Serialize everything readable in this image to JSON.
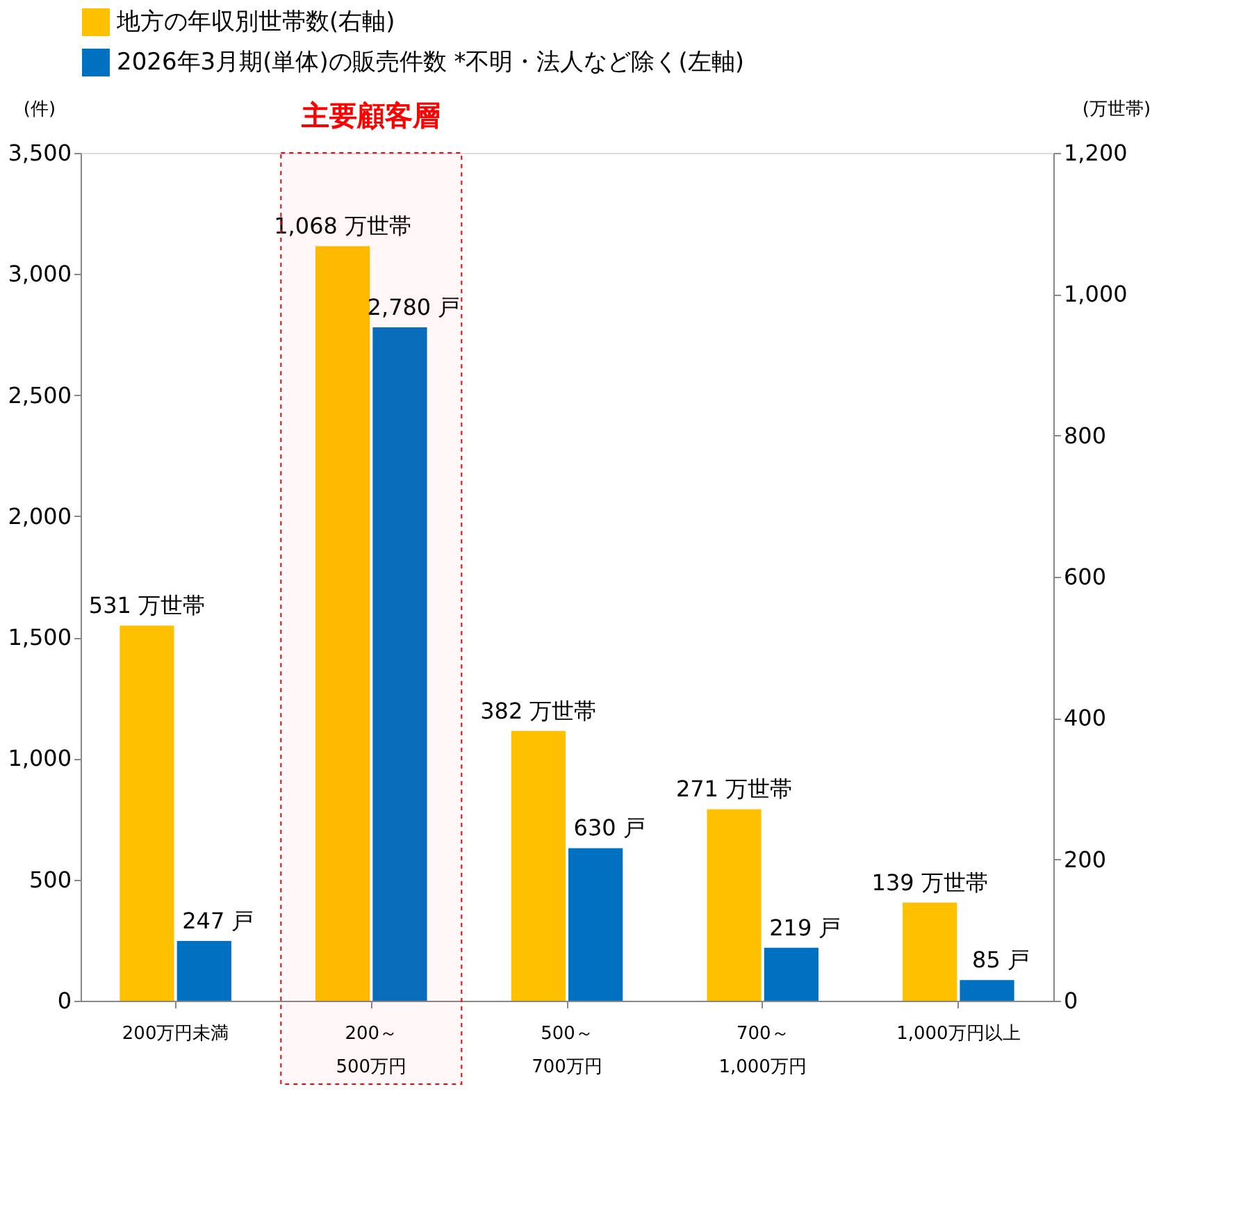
{
  "chart_data": {
    "type": "bar",
    "categories": [
      "200万円未満",
      "200～\n500万円",
      "500～\n700万円",
      "700～\n1,000万円",
      "1,000万円以上"
    ],
    "series": [
      {
        "name": "地方の年収別世帯数(右軸)",
        "color": "#ffc000",
        "axis": "y2",
        "values": [
          531,
          1068,
          382,
          271,
          139
        ],
        "value_labels": [
          "531 万世帯",
          "1,068 万世帯",
          "382 万世帯",
          "271 万世帯",
          "139 万世帯"
        ]
      },
      {
        "name": "2026年3月期(単体)の販売件数 *不明・法人など除く(左軸)",
        "color": "#0070c0",
        "values": [
          247,
          2780,
          630,
          219,
          85
        ],
        "value_labels": [
          "247 戸",
          "2,780 戸",
          "630 戸",
          "219 戸",
          "85 戸"
        ]
      }
    ],
    "ylabel": "(件)",
    "y2label": "(万世帯)",
    "ylim": [
      0,
      3500
    ],
    "yticks": [
      0,
      500,
      {
        "value": 1000,
        "label": "1,000"
      },
      {
        "value": 1500,
        "label": "1,500"
      },
      {
        "value": 2000,
        "label": "2,000"
      },
      {
        "value": 2500,
        "label": "2,500"
      },
      {
        "value": 3000,
        "label": "3,000"
      },
      {
        "value": 3500,
        "label": "3,500"
      }
    ],
    "y2lim": [
      0,
      1200
    ],
    "y2ticks": [
      0,
      200,
      400,
      600,
      800,
      {
        "value": 1000,
        "label": "1,000"
      },
      {
        "value": 1200,
        "label": "1,200"
      }
    ],
    "bands": [
      {
        "axis": "x",
        "from": "200～\n500万円",
        "to": "200～\n500万円",
        "label": "主要顧客層",
        "color": "#ff0000"
      }
    ],
    "legend": "top",
    "grid": false
  }
}
